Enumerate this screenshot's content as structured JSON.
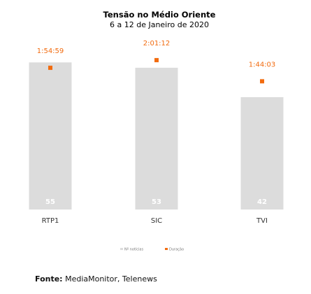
{
  "chart_data": {
    "type": "bar",
    "title": "Tensão no Médio Oriente",
    "subtitle": "6 a 12 de Janeiro de 2020",
    "categories": [
      "RTP1",
      "SIC",
      "TVI"
    ],
    "series": [
      {
        "name": "Nº notícias",
        "type": "bar",
        "values": [
          55,
          53,
          42
        ],
        "color": "#dcdcdc"
      },
      {
        "name": "Duração",
        "type": "marker",
        "values": [
          "1:54:59",
          "2:01:12",
          "1:44:03"
        ],
        "color": "#f26b0f"
      }
    ],
    "ylim_bars": [
      0,
      60
    ],
    "ylim_duration_seconds": [
      0,
      8500
    ],
    "legend_position": "bottom",
    "grid": false
  },
  "colors": {
    "accent": "#f26b0f",
    "bar": "#dcdcdc",
    "bar_label": "#ffffff"
  },
  "source": {
    "label": "Fonte:",
    "text": " MediaMonitor, Telenews"
  }
}
